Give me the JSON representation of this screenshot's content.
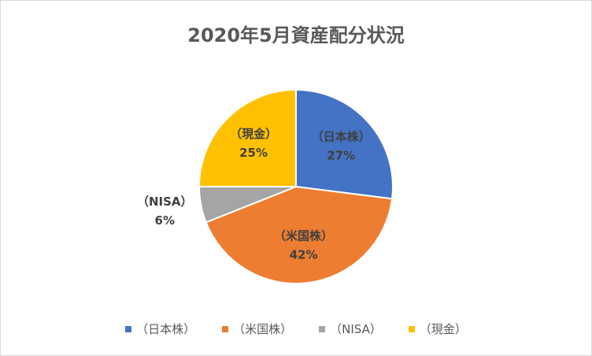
{
  "chart_data": {
    "type": "pie",
    "title": "2020年5月資産配分状況",
    "slices": [
      {
        "name": "（日本株）",
        "value": 27,
        "label": "27%",
        "color": "#4472C4"
      },
      {
        "name": "（米国株）",
        "value": 42,
        "label": "42%",
        "color": "#ED7D31"
      },
      {
        "name": "（NISA）",
        "value": 6,
        "label": "6%",
        "color": "#A5A5A5"
      },
      {
        "name": "（現金）",
        "value": 25,
        "label": "25%",
        "color": "#FFC000"
      }
    ],
    "legend_position": "bottom",
    "data_label_contents": [
      "category",
      "percent"
    ]
  }
}
